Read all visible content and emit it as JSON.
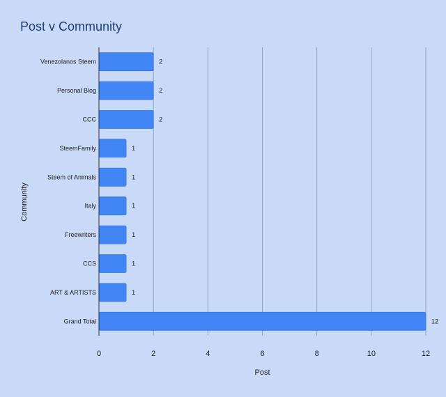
{
  "chart_data": {
    "type": "bar",
    "orientation": "horizontal",
    "title": "Post v Community",
    "xlabel": "Post",
    "ylabel": "Community",
    "categories": [
      "Venezolanos Steem",
      "Personal Blog",
      "CCC",
      "SteemFamily",
      "Steem of Animals",
      "Italy",
      "Freewriters",
      "CCS",
      "ART & ARTISTS",
      "Grand Total"
    ],
    "values": [
      2,
      2,
      2,
      1,
      1,
      1,
      1,
      1,
      1,
      12
    ],
    "xlim": [
      0,
      12
    ],
    "x_ticks": [
      0,
      2,
      4,
      6,
      8,
      10,
      12
    ],
    "grid": true,
    "data_labels": true,
    "colors": {
      "background": "#c9daf8",
      "bar": "#4285f4",
      "bar_edge": "#3a76d8",
      "grid": "#8fa3c4",
      "title": "#1f3f7a"
    }
  }
}
